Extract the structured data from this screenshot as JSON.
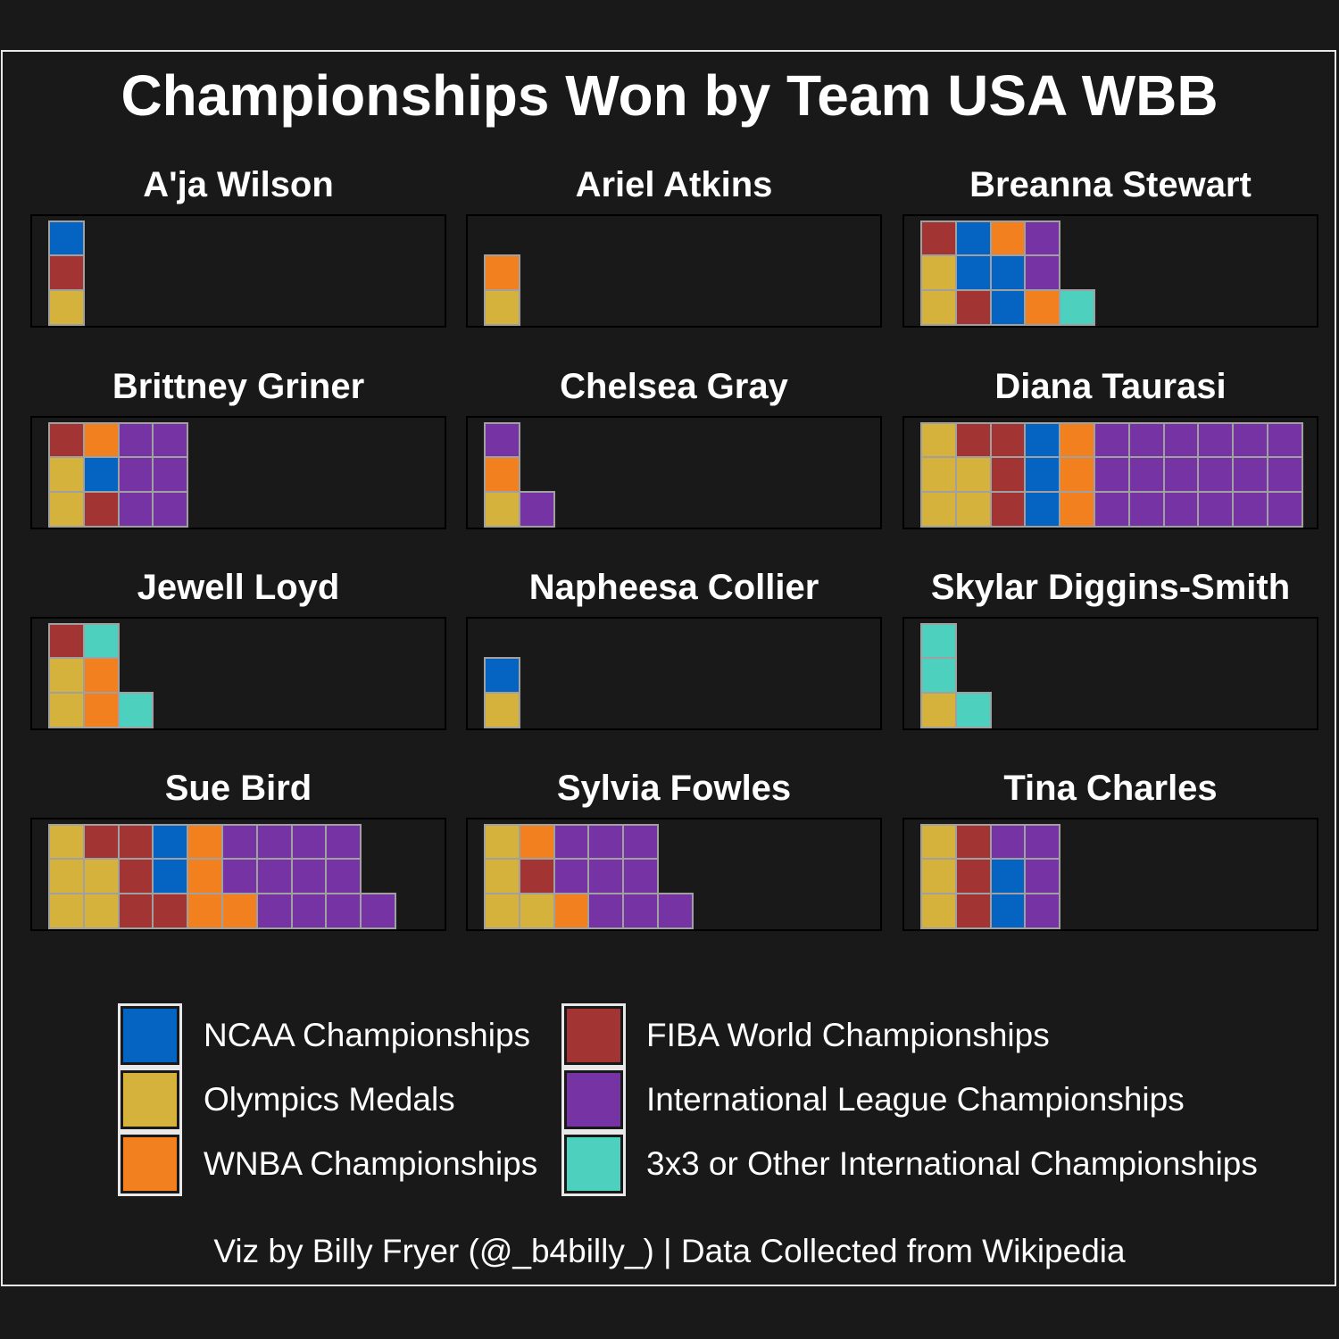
{
  "title": "Championships Won by Team USA WBB",
  "caption": "Viz by Billy Fryer (@_b4billy_) | Data Collected from Wikipedia",
  "colors": {
    "ncaa": "#0563c1",
    "fiba": "#a23434",
    "olympics": "#d5b23b",
    "intl": "#7533a3",
    "wnba": "#f3801f",
    "other": "#4dd0bd"
  },
  "legend": [
    {
      "key": "ncaa",
      "label": "NCAA Championships"
    },
    {
      "key": "olympics",
      "label": "Olympics Medals"
    },
    {
      "key": "wnba",
      "label": "WNBA Championships"
    },
    {
      "key": "fiba",
      "label": "FIBA World Championships"
    },
    {
      "key": "intl",
      "label": "International League Championships"
    },
    {
      "key": "other",
      "label": "3x3 or Other International Championships"
    }
  ],
  "chart_data": {
    "type": "waffle",
    "categories": [
      "ncaa",
      "olympics",
      "wnba",
      "fiba",
      "intl",
      "other"
    ],
    "players": [
      {
        "name": "A'ja Wilson",
        "columns": [
          [
            "olympics",
            "fiba",
            "ncaa"
          ]
        ]
      },
      {
        "name": "Ariel Atkins",
        "columns": [
          [
            "olympics",
            "wnba"
          ]
        ]
      },
      {
        "name": "Breanna Stewart",
        "columns": [
          [
            "olympics",
            "olympics",
            "fiba"
          ],
          [
            "fiba",
            "ncaa",
            "ncaa"
          ],
          [
            "ncaa",
            "ncaa",
            "wnba"
          ],
          [
            "wnba",
            "intl",
            "intl"
          ],
          [
            "other"
          ]
        ]
      },
      {
        "name": "Brittney Griner",
        "columns": [
          [
            "olympics",
            "olympics",
            "fiba"
          ],
          [
            "fiba",
            "ncaa",
            "wnba"
          ],
          [
            "intl",
            "intl",
            "intl"
          ],
          [
            "intl",
            "intl",
            "intl"
          ]
        ]
      },
      {
        "name": "Chelsea Gray",
        "columns": [
          [
            "olympics",
            "wnba",
            "intl"
          ],
          [
            "intl"
          ]
        ]
      },
      {
        "name": "Diana Taurasi",
        "columns": [
          [
            "olympics",
            "olympics",
            "olympics"
          ],
          [
            "olympics",
            "olympics",
            "fiba"
          ],
          [
            "fiba",
            "fiba",
            "fiba"
          ],
          [
            "ncaa",
            "ncaa",
            "ncaa"
          ],
          [
            "wnba",
            "wnba",
            "wnba"
          ],
          [
            "intl",
            "intl",
            "intl"
          ],
          [
            "intl",
            "intl",
            "intl"
          ],
          [
            "intl",
            "intl",
            "intl"
          ],
          [
            "intl",
            "intl",
            "intl"
          ],
          [
            "intl",
            "intl",
            "intl"
          ],
          [
            "intl",
            "intl",
            "intl"
          ]
        ]
      },
      {
        "name": "Jewell Loyd",
        "columns": [
          [
            "olympics",
            "olympics",
            "fiba"
          ],
          [
            "wnba",
            "wnba",
            "other"
          ],
          [
            "other"
          ]
        ]
      },
      {
        "name": "Napheesa Collier",
        "columns": [
          [
            "olympics",
            "ncaa"
          ]
        ]
      },
      {
        "name": "Skylar Diggins-Smith",
        "columns": [
          [
            "olympics",
            "other",
            "other"
          ],
          [
            "other"
          ]
        ]
      },
      {
        "name": "Sue Bird",
        "columns": [
          [
            "olympics",
            "olympics",
            "olympics"
          ],
          [
            "olympics",
            "olympics",
            "fiba"
          ],
          [
            "fiba",
            "fiba",
            "fiba"
          ],
          [
            "fiba",
            "ncaa",
            "ncaa"
          ],
          [
            "wnba",
            "wnba",
            "wnba"
          ],
          [
            "wnba",
            "intl",
            "intl"
          ],
          [
            "intl",
            "intl",
            "intl"
          ],
          [
            "intl",
            "intl",
            "intl"
          ],
          [
            "intl",
            "intl",
            "intl"
          ],
          [
            "intl"
          ]
        ]
      },
      {
        "name": "Sylvia Fowles",
        "columns": [
          [
            "olympics",
            "olympics",
            "olympics"
          ],
          [
            "olympics",
            "fiba",
            "wnba"
          ],
          [
            "wnba",
            "intl",
            "intl"
          ],
          [
            "intl",
            "intl",
            "intl"
          ],
          [
            "intl",
            "intl",
            "intl"
          ],
          [
            "intl"
          ]
        ]
      },
      {
        "name": "Tina Charles",
        "columns": [
          [
            "olympics",
            "olympics",
            "olympics"
          ],
          [
            "fiba",
            "fiba",
            "fiba"
          ],
          [
            "ncaa",
            "ncaa",
            "intl"
          ],
          [
            "intl",
            "intl",
            "intl"
          ]
        ]
      }
    ]
  }
}
